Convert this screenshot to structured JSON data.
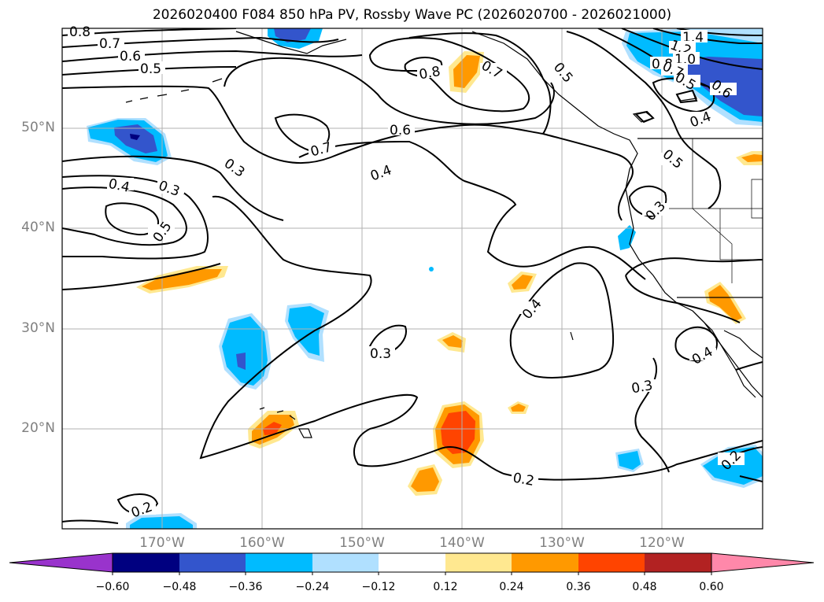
{
  "title": "2026020400 F084 850 hPa PV, Rossby Wave PC (2026020700 - 2026021000)",
  "lat_labels": [
    "50°N",
    "40°N",
    "30°N",
    "20°N"
  ],
  "lon_labels": [
    "170°W",
    "160°W",
    "150°W",
    "140°W",
    "130°W",
    "120°W"
  ],
  "colorbar": {
    "tick_labels": [
      "−0.60",
      "−0.48",
      "−0.36",
      "−0.24",
      "−0.12",
      "0.12",
      "0.24",
      "0.36",
      "0.48",
      "0.60"
    ],
    "colors": [
      "#9933cc",
      "#000080",
      "#3355cc",
      "#00bbff",
      "#b0e0ff",
      "#ffffff",
      "#ffe890",
      "#ff9900",
      "#ff4400",
      "#b22222",
      "#ff88aa"
    ]
  },
  "contour_labels": [
    "0.8",
    "0.7",
    "0.6",
    "0.5",
    "0.4",
    "0.3",
    "0.5",
    "0.8",
    "0.7",
    "0.6",
    "0.7",
    "0.4",
    "0.3",
    "1.4",
    "1.2",
    "1.0",
    "0.8",
    "0.7",
    "0.5",
    "0.6",
    "0.4",
    "0.5",
    "0.3",
    "0.4",
    "0.3",
    "0.4",
    "0.3",
    "0.2",
    "0.2",
    "0.2",
    "0.5"
  ],
  "colors": {
    "grid": "#b0b0b0",
    "contour": "#000000",
    "lightblue": "#b0e0ff",
    "blue": "#00bbff",
    "royal": "#3355cc",
    "navy": "#000080",
    "yellow": "#ffe890",
    "orange": "#ff9900",
    "red": "#ff4400"
  }
}
